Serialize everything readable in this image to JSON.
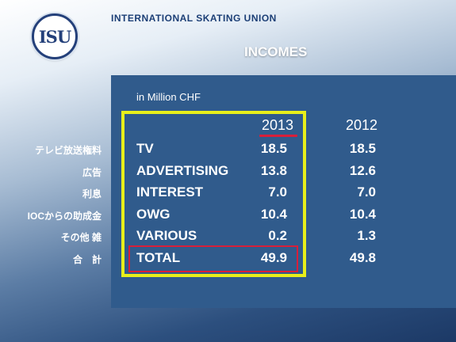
{
  "header": {
    "logo_text": "ISU",
    "org_name": "INTERNATIONAL SKATING UNION",
    "title": "INCOMES"
  },
  "table": {
    "unit": "in Million CHF",
    "years": [
      "2013",
      "2012"
    ],
    "rows": [
      {
        "jp": "テレビ放送権料",
        "label": "TV",
        "v2013": "18.5",
        "v2012": "18.5"
      },
      {
        "jp": "広告",
        "label": "ADVERTISING",
        "v2013": "13.8",
        "v2012": "12.6"
      },
      {
        "jp": "利息",
        "label": "INTEREST",
        "v2013": "7.0",
        "v2012": "7.0"
      },
      {
        "jp": "IOCからの助成金",
        "label": "OWG",
        "v2013": "10.4",
        "v2012": "10.4"
      },
      {
        "jp": "その他 雑",
        "label": "VARIOUS",
        "v2013": "0.2",
        "v2012": "1.3"
      },
      {
        "jp": "合　計",
        "label": "TOTAL",
        "v2013": "49.9",
        "v2012": "49.8"
      }
    ]
  },
  "colors": {
    "highlight_box": "#e8ef1a",
    "total_box": "#d81f3a",
    "panel": "#305b8c"
  }
}
